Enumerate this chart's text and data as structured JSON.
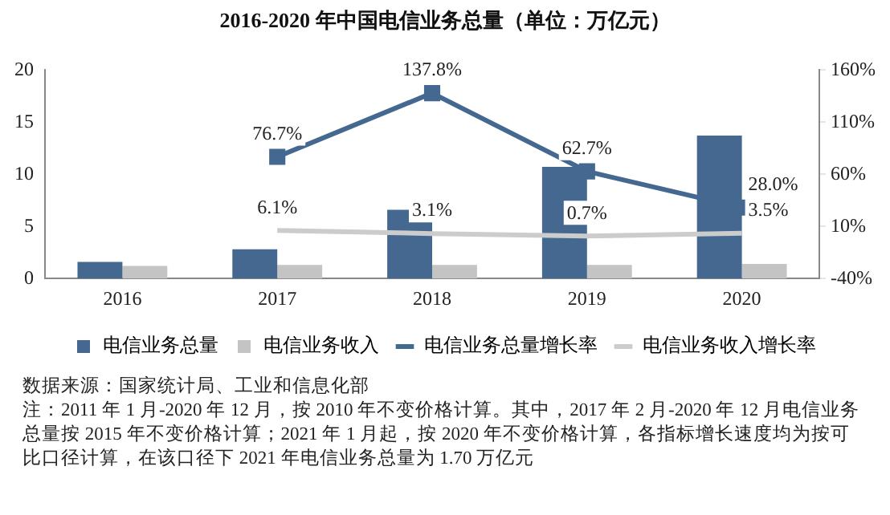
{
  "chart_data": {
    "type": "bar",
    "title": "2016-2020 年中国电信业务总量（单位：万亿元）",
    "categories": [
      "2016",
      "2017",
      "2018",
      "2019",
      "2020"
    ],
    "series": [
      {
        "name": "电信业务总量",
        "color": "#44688f",
        "values": [
          1.6,
          2.8,
          6.6,
          10.7,
          13.7
        ]
      },
      {
        "name": "电信业务收入",
        "color": "#c4c4c4",
        "values": [
          1.2,
          1.3,
          1.3,
          1.3,
          1.4
        ]
      },
      {
        "name": "电信业务总量增长率",
        "type": "line",
        "axis": "y2",
        "color": "#44688f",
        "marker": "square",
        "values": [
          null,
          76.7,
          137.8,
          62.7,
          28.0
        ],
        "value_labels": [
          null,
          "76.7%",
          "137.8%",
          "62.7%",
          "28.0%"
        ]
      },
      {
        "name": "电信业务收入增长率",
        "type": "line",
        "axis": "y2",
        "color": "#cccccc",
        "marker": "none",
        "values": [
          null,
          6.1,
          3.1,
          0.7,
          3.5
        ],
        "value_labels": [
          null,
          "6.1%",
          "3.1%",
          "0.7%",
          "3.5%"
        ]
      }
    ],
    "ylim": [
      0,
      20
    ],
    "yticks": [
      0,
      5,
      10,
      15,
      20
    ],
    "y2lim": [
      -40,
      160
    ],
    "y2ticks": [
      {
        "value": -40,
        "label": "-40%"
      },
      {
        "value": 10,
        "label": "10%"
      },
      {
        "value": 60,
        "label": "60%"
      },
      {
        "value": 110,
        "label": "110%"
      },
      {
        "value": 160,
        "label": "160%"
      }
    ],
    "grid": false,
    "legend": "bottom",
    "annotations": [
      "数据来源：国家统计局、工业和信息化部",
      "注：2011 年 1 月-2020 年 12 月，按 2010 年不变价格计算。其中，2017 年 2 月-2020 年 12 月电信业务总量按 2015 年不变价格计算；2021 年 1 月起，按 2020 年不变价格计算，各指标增长速度均为按可比口径计算，在该口径下 2021 年电信业务总量为 1.70 万亿元"
    ]
  }
}
